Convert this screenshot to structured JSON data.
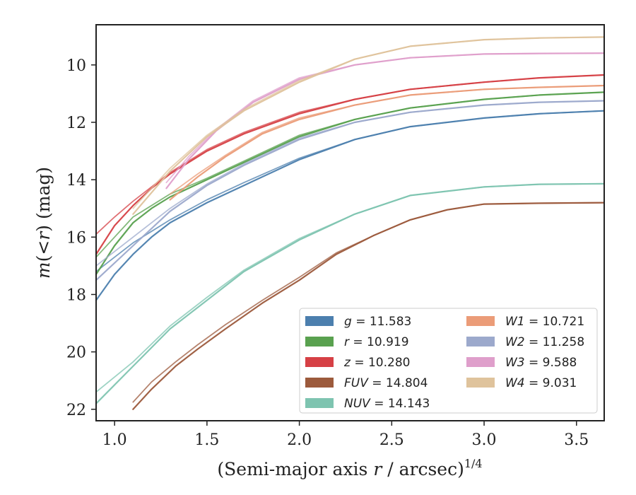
{
  "chart_data": {
    "type": "line",
    "xlabel_main": "(Semi-major axis ",
    "xlabel_var": "r",
    "xlabel_tail": " / arcsec)",
    "xlabel_sup": "1/4",
    "ylabel_main": "m",
    "ylabel_mid": "(<",
    "ylabel_var": "r",
    "ylabel_tail": ") (mag)",
    "xlim": [
      0.9,
      3.65
    ],
    "ylim": [
      22.4,
      8.6
    ],
    "y_inverted": true,
    "grid": false,
    "legend_position": "lower-right",
    "x_ticks": [
      1.0,
      1.5,
      2.0,
      2.5,
      3.0,
      3.5
    ],
    "x_tick_labels": [
      "1.0",
      "1.5",
      "2.0",
      "2.5",
      "3.0",
      "3.5"
    ],
    "y_ticks": [
      10,
      12,
      14,
      16,
      18,
      20,
      22
    ],
    "y_tick_labels": [
      "10",
      "12",
      "14",
      "16",
      "18",
      "20",
      "22"
    ],
    "series": [
      {
        "name": "g",
        "label_value": "11.583",
        "color": "#4c7fae",
        "band": [
          {
            "x": [
              0.9,
              1.0,
              1.1,
              1.2,
              1.3,
              1.5,
              1.7,
              2.0,
              2.3,
              2.6,
              3.0,
              3.3,
              3.65
            ],
            "y": [
              18.2,
              17.3,
              16.6,
              16.0,
              15.5,
              14.8,
              14.2,
              13.3,
              12.6,
              12.15,
              11.85,
              11.7,
              11.6
            ]
          },
          {
            "x": [
              0.9,
              1.0,
              1.1,
              1.2,
              1.3,
              1.5,
              1.7,
              2.0,
              2.3,
              2.6,
              3.0,
              3.3,
              3.65
            ],
            "y": [
              17.2,
              16.7,
              16.2,
              15.8,
              15.4,
              14.7,
              14.1,
              13.25,
              12.6,
              12.15,
              11.85,
              11.7,
              11.6
            ]
          }
        ]
      },
      {
        "name": "r",
        "label_value": "10.919",
        "color": "#59a14f",
        "band": [
          {
            "x": [
              0.9,
              1.0,
              1.1,
              1.2,
              1.3,
              1.5,
              1.7,
              2.0,
              2.3,
              2.6,
              3.0,
              3.3,
              3.65
            ],
            "y": [
              17.3,
              16.3,
              15.5,
              15.0,
              14.6,
              14.0,
              13.4,
              12.5,
              11.9,
              11.5,
              11.2,
              11.05,
              10.95
            ]
          },
          {
            "x": [
              0.9,
              1.0,
              1.1,
              1.2,
              1.3,
              1.5,
              1.7,
              2.0,
              2.3,
              2.6,
              3.0,
              3.3,
              3.65
            ],
            "y": [
              16.7,
              16.0,
              15.3,
              14.9,
              14.5,
              13.95,
              13.35,
              12.45,
              11.9,
              11.5,
              11.2,
              11.05,
              10.95
            ]
          }
        ]
      },
      {
        "name": "z",
        "label_value": "10.280",
        "color": "#d64045",
        "band": [
          {
            "x": [
              0.9,
              1.0,
              1.1,
              1.2,
              1.3,
              1.5,
              1.7,
              2.0,
              2.3,
              2.6,
              3.0,
              3.3,
              3.65
            ],
            "y": [
              16.6,
              15.6,
              14.9,
              14.3,
              13.8,
              13.0,
              12.4,
              11.7,
              11.2,
              10.85,
              10.6,
              10.45,
              10.35
            ]
          },
          {
            "x": [
              0.9,
              1.0,
              1.1,
              1.2,
              1.3,
              1.5,
              1.7,
              2.0,
              2.3,
              2.6,
              3.0,
              3.3,
              3.65
            ],
            "y": [
              15.9,
              15.3,
              14.75,
              14.25,
              13.75,
              12.95,
              12.35,
              11.65,
              11.2,
              10.85,
              10.6,
              10.45,
              10.35
            ]
          }
        ]
      },
      {
        "name": "FUV",
        "label_value": "14.804",
        "color": "#9c5a3c",
        "band": [
          {
            "x": [
              1.1,
              1.2,
              1.33,
              1.45,
              1.6,
              1.8,
              2.0,
              2.2,
              2.4,
              2.6,
              2.8,
              3.0,
              3.3,
              3.65
            ],
            "y": [
              22.0,
              21.3,
              20.5,
              19.9,
              19.2,
              18.3,
              17.5,
              16.6,
              15.95,
              15.4,
              15.05,
              14.85,
              14.82,
              14.8
            ]
          },
          {
            "x": [
              1.1,
              1.2,
              1.33,
              1.45,
              1.6,
              1.8,
              2.0,
              2.2,
              2.4,
              2.6,
              2.8,
              3.0,
              3.3,
              3.65
            ],
            "y": [
              21.75,
              21.05,
              20.35,
              19.75,
              19.05,
              18.2,
              17.4,
              16.55,
              15.95,
              15.4,
              15.05,
              14.85,
              14.82,
              14.8
            ]
          }
        ]
      },
      {
        "name": "NUV",
        "label_value": "14.143",
        "color": "#7ec4b0",
        "band": [
          {
            "x": [
              0.9,
              1.1,
              1.3,
              1.5,
              1.7,
              2.0,
              2.3,
              2.6,
              3.0,
              3.3,
              3.65
            ],
            "y": [
              21.8,
              20.5,
              19.2,
              18.2,
              17.2,
              16.1,
              15.2,
              14.55,
              14.25,
              14.16,
              14.14
            ]
          },
          {
            "x": [
              0.9,
              1.1,
              1.3,
              1.5,
              1.7,
              2.0,
              2.3,
              2.6,
              3.0,
              3.3,
              3.65
            ],
            "y": [
              21.4,
              20.35,
              19.1,
              18.1,
              17.15,
              16.05,
              15.2,
              14.55,
              14.25,
              14.16,
              14.14
            ]
          }
        ]
      },
      {
        "name": "W1",
        "label_value": "10.721",
        "color": "#eb9c78",
        "band": [
          {
            "x": [
              1.3,
              1.45,
              1.6,
              1.8,
              2.0,
              2.3,
              2.6,
              3.0,
              3.3,
              3.65
            ],
            "y": [
              14.7,
              13.9,
              13.2,
              12.4,
              11.9,
              11.4,
              11.05,
              10.85,
              10.78,
              10.72
            ]
          },
          {
            "x": [
              1.3,
              1.45,
              1.6,
              1.8,
              2.0,
              2.3,
              2.6,
              3.0,
              3.3,
              3.65
            ],
            "y": [
              14.5,
              13.8,
              13.15,
              12.35,
              11.85,
              11.4,
              11.05,
              10.85,
              10.78,
              10.72
            ]
          }
        ]
      },
      {
        "name": "W2",
        "label_value": "11.258",
        "color": "#9ca9cc",
        "band": [
          {
            "x": [
              0.9,
              1.1,
              1.3,
              1.5,
              1.7,
              2.0,
              2.3,
              2.6,
              3.0,
              3.3,
              3.65
            ],
            "y": [
              17.5,
              16.3,
              15.1,
              14.2,
              13.5,
              12.6,
              12.0,
              11.65,
              11.4,
              11.3,
              11.25
            ]
          },
          {
            "x": [
              0.9,
              1.1,
              1.3,
              1.5,
              1.7,
              2.0,
              2.3,
              2.6,
              3.0,
              3.3,
              3.65
            ],
            "y": [
              17.0,
              16.0,
              15.0,
              14.15,
              13.45,
              12.55,
              12.0,
              11.65,
              11.4,
              11.3,
              11.25
            ]
          }
        ]
      },
      {
        "name": "W3",
        "label_value": "9.588",
        "color": "#df9fcb",
        "band": [
          {
            "x": [
              1.28,
              1.4,
              1.55,
              1.75,
              2.0,
              2.3,
              2.6,
              3.0,
              3.3,
              3.65
            ],
            "y": [
              14.3,
              13.3,
              12.3,
              11.3,
              10.5,
              10.0,
              9.75,
              9.62,
              9.6,
              9.59
            ]
          },
          {
            "x": [
              1.28,
              1.4,
              1.55,
              1.75,
              2.0,
              2.3,
              2.6,
              3.0,
              3.3,
              3.65
            ],
            "y": [
              14.1,
              13.2,
              12.25,
              11.25,
              10.45,
              10.0,
              9.75,
              9.62,
              9.6,
              9.59
            ]
          }
        ]
      },
      {
        "name": "W4",
        "label_value": "9.031",
        "color": "#dfc39c",
        "band": [
          {
            "x": [
              1.1,
              1.3,
              1.5,
              1.7,
              2.0,
              2.3,
              2.6,
              3.0,
              3.3,
              3.65
            ],
            "y": [
              15.2,
              13.7,
              12.5,
              11.6,
              10.6,
              9.8,
              9.35,
              9.12,
              9.06,
              9.03
            ]
          },
          {
            "x": [
              1.1,
              1.3,
              1.5,
              1.7,
              2.0,
              2.3,
              2.6,
              3.0,
              3.3,
              3.65
            ],
            "y": [
              15.0,
              13.6,
              12.45,
              11.55,
              10.55,
              9.8,
              9.35,
              9.12,
              9.06,
              9.03
            ]
          }
        ]
      }
    ]
  }
}
